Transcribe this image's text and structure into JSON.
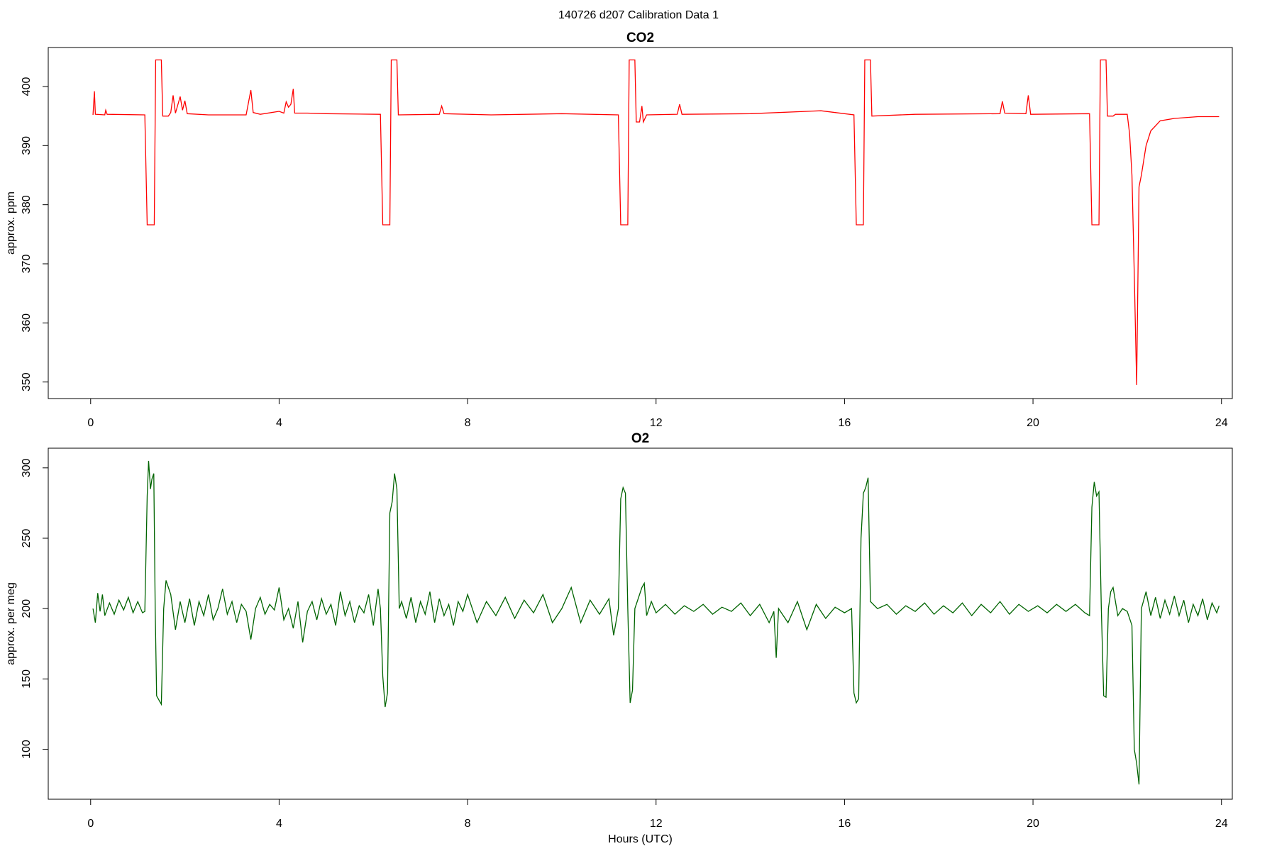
{
  "title": "140726   d207   Calibration Data 1",
  "chart_data": [
    {
      "type": "line",
      "title": "CO2",
      "ylabel": "approx. ppm",
      "color": "#ff0000",
      "xlim": [
        -0.9,
        24.23
      ],
      "ylim": [
        347.2,
        406.6
      ],
      "xticks": [
        0,
        4,
        8,
        12,
        16,
        20,
        24
      ],
      "yticks": [
        350,
        360,
        370,
        380,
        390,
        400
      ],
      "x": [
        0.05,
        0.08,
        0.1,
        0.3,
        0.32,
        0.35,
        1.15,
        1.2,
        1.35,
        1.38,
        1.5,
        1.53,
        1.65,
        1.7,
        1.75,
        1.8,
        1.9,
        1.95,
        2.0,
        2.05,
        2.5,
        3.3,
        3.4,
        3.45,
        3.6,
        4.0,
        4.1,
        4.15,
        4.2,
        4.25,
        4.3,
        4.33,
        4.6,
        5.0,
        6.15,
        6.2,
        6.35,
        6.38,
        6.5,
        6.53,
        7.4,
        7.45,
        7.5,
        8.5,
        10.0,
        11.2,
        11.25,
        11.4,
        11.43,
        11.55,
        11.58,
        11.65,
        11.7,
        11.73,
        11.8,
        12.45,
        12.5,
        12.55,
        14.0,
        15.5,
        16.2,
        16.25,
        16.4,
        16.43,
        16.55,
        16.58,
        17.5,
        19.3,
        19.35,
        19.4,
        19.85,
        19.9,
        19.95,
        21.2,
        21.25,
        21.4,
        21.43,
        21.55,
        21.58,
        21.7,
        21.75,
        22.0,
        22.05,
        22.1,
        22.15,
        22.2,
        22.25,
        22.3,
        22.4,
        22.5,
        22.7,
        23.0,
        23.5,
        23.95
      ],
      "values": [
        395.2,
        399.2,
        395.3,
        395.2,
        396,
        395.3,
        395.2,
        376.6,
        376.6,
        404.5,
        404.5,
        395,
        395,
        395.6,
        398.5,
        395.5,
        398.3,
        396,
        397.6,
        395.4,
        395.2,
        395.2,
        399.4,
        395.6,
        395.3,
        395.8,
        395.5,
        397.4,
        396.5,
        397,
        399.6,
        395.5,
        395.5,
        395.4,
        395.3,
        376.6,
        376.6,
        404.5,
        404.5,
        395.2,
        395.3,
        396.7,
        395.4,
        395.2,
        395.4,
        395.2,
        376.6,
        376.6,
        404.5,
        404.5,
        394,
        394,
        396.7,
        394,
        395.2,
        395.3,
        397,
        395.3,
        395.4,
        395.9,
        395.2,
        376.6,
        376.6,
        404.5,
        404.5,
        395,
        395.3,
        395.4,
        397.5,
        395.5,
        395.4,
        398.5,
        395.3,
        395.4,
        376.6,
        376.6,
        404.5,
        404.5,
        395,
        395,
        395.3,
        395.3,
        392,
        385,
        368,
        349.5,
        383,
        385,
        390,
        392.5,
        394.2,
        394.6,
        394.9,
        394.9
      ]
    },
    {
      "type": "line",
      "title": "O2",
      "ylabel": "approx. per meg",
      "xlabel": "Hours (UTC)",
      "color": "#006400",
      "xlim": [
        -0.9,
        24.23
      ],
      "ylim": [
        64.5,
        314
      ],
      "xticks": [
        0,
        4,
        8,
        12,
        16,
        20,
        24
      ],
      "yticks": [
        100,
        150,
        200,
        250,
        300
      ],
      "x": [
        0.05,
        0.1,
        0.15,
        0.2,
        0.25,
        0.3,
        0.4,
        0.5,
        0.6,
        0.7,
        0.8,
        0.9,
        1.0,
        1.1,
        1.15,
        1.2,
        1.23,
        1.27,
        1.3,
        1.34,
        1.37,
        1.4,
        1.45,
        1.5,
        1.55,
        1.6,
        1.7,
        1.8,
        1.9,
        2.0,
        2.1,
        2.2,
        2.3,
        2.4,
        2.5,
        2.6,
        2.7,
        2.8,
        2.9,
        3.0,
        3.1,
        3.2,
        3.3,
        3.4,
        3.5,
        3.6,
        3.7,
        3.8,
        3.9,
        4.0,
        4.1,
        4.2,
        4.3,
        4.4,
        4.5,
        4.6,
        4.7,
        4.8,
        4.9,
        5.0,
        5.1,
        5.2,
        5.3,
        5.4,
        5.5,
        5.6,
        5.7,
        5.8,
        5.9,
        6.0,
        6.1,
        6.15,
        6.2,
        6.25,
        6.3,
        6.35,
        6.4,
        6.45,
        6.5,
        6.55,
        6.6,
        6.7,
        6.8,
        6.9,
        7.0,
        7.1,
        7.2,
        7.3,
        7.4,
        7.5,
        7.6,
        7.7,
        7.8,
        7.9,
        8.0,
        8.2,
        8.4,
        8.6,
        8.8,
        9.0,
        9.2,
        9.4,
        9.6,
        9.8,
        10.0,
        10.2,
        10.4,
        10.6,
        10.8,
        11.0,
        11.1,
        11.2,
        11.25,
        11.3,
        11.35,
        11.4,
        11.45,
        11.5,
        11.55,
        11.6,
        11.7,
        11.75,
        11.8,
        11.9,
        12.0,
        12.2,
        12.4,
        12.6,
        12.8,
        13.0,
        13.2,
        13.4,
        13.6,
        13.8,
        14.0,
        14.2,
        14.4,
        14.5,
        14.55,
        14.6,
        14.8,
        15.0,
        15.2,
        15.4,
        15.6,
        15.8,
        16.0,
        16.15,
        16.2,
        16.25,
        16.3,
        16.35,
        16.4,
        16.45,
        16.5,
        16.55,
        16.7,
        16.9,
        17.1,
        17.3,
        17.5,
        17.7,
        17.9,
        18.1,
        18.3,
        18.5,
        18.7,
        18.9,
        19.1,
        19.3,
        19.5,
        19.7,
        19.9,
        20.1,
        20.3,
        20.5,
        20.7,
        20.9,
        21.1,
        21.2,
        21.25,
        21.3,
        21.35,
        21.4,
        21.45,
        21.5,
        21.55,
        21.6,
        21.65,
        21.7,
        21.8,
        21.9,
        22.0,
        22.1,
        22.15,
        22.2,
        22.25,
        22.3,
        22.4,
        22.5,
        22.6,
        22.7,
        22.8,
        22.9,
        23.0,
        23.1,
        23.2,
        23.3,
        23.4,
        23.5,
        23.6,
        23.7,
        23.8,
        23.9,
        23.95
      ],
      "values": [
        200,
        190,
        211,
        198,
        210,
        195,
        204,
        196,
        206,
        199,
        208,
        197,
        205,
        197,
        198,
        280,
        305,
        285,
        292,
        296,
        200,
        138,
        135,
        132,
        200,
        220,
        210,
        185,
        205,
        190,
        207,
        188,
        205,
        195,
        210,
        192,
        200,
        214,
        196,
        205,
        190,
        203,
        198,
        178,
        200,
        208,
        196,
        203,
        199,
        215,
        192,
        200,
        186,
        205,
        176,
        198,
        205,
        192,
        207,
        196,
        203,
        188,
        212,
        195,
        205,
        190,
        202,
        197,
        210,
        188,
        214,
        200,
        152,
        130,
        140,
        268,
        276,
        296,
        285,
        200,
        205,
        193,
        208,
        190,
        205,
        196,
        212,
        190,
        207,
        195,
        203,
        188,
        205,
        198,
        210,
        190,
        205,
        195,
        208,
        193,
        206,
        197,
        210,
        190,
        200,
        215,
        190,
        206,
        196,
        207,
        181,
        200,
        278,
        286,
        282,
        200,
        133,
        142,
        200,
        205,
        215,
        218,
        195,
        205,
        197,
        203,
        196,
        202,
        198,
        203,
        196,
        201,
        198,
        204,
        195,
        203,
        190,
        198,
        165,
        200,
        190,
        205,
        185,
        203,
        193,
        201,
        197,
        200,
        140,
        133,
        136,
        250,
        282,
        286,
        293,
        205,
        200,
        203,
        196,
        202,
        198,
        204,
        196,
        202,
        197,
        204,
        195,
        203,
        197,
        205,
        196,
        203,
        198,
        202,
        197,
        203,
        198,
        203,
        197,
        195,
        272,
        290,
        280,
        283,
        200,
        138,
        137,
        200,
        212,
        215,
        195,
        200,
        198,
        188,
        100,
        90,
        75,
        200,
        212,
        195,
        208,
        193,
        206,
        196,
        209,
        195,
        206,
        190,
        203,
        195,
        207,
        192,
        204,
        197,
        202
      ]
    }
  ]
}
